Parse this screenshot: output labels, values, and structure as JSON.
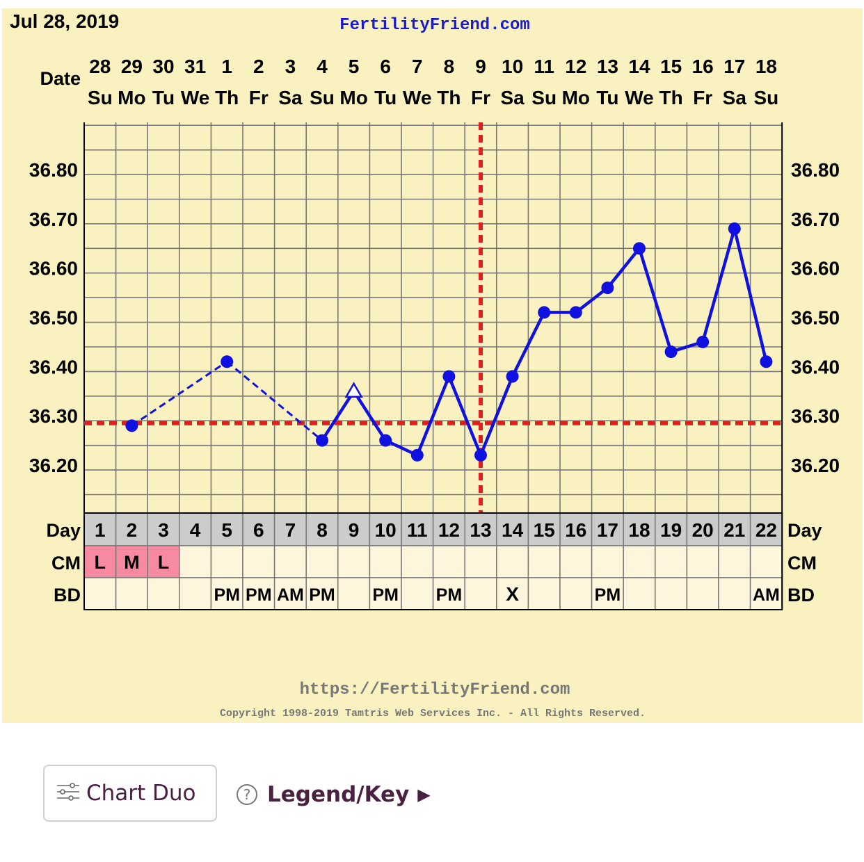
{
  "header": {
    "date": "Jul 28, 2019",
    "site": "FertilityFriend.com"
  },
  "labels": {
    "date": "Date",
    "day": "Day",
    "cm": "CM",
    "bd": "BD"
  },
  "footer": {
    "url": "https://FertilityFriend.com",
    "copyright": "Copyright 1998-2019 Tamtris Web Services Inc. - All Rights Reserved."
  },
  "chart_data": {
    "type": "line",
    "dates": [
      "28",
      "29",
      "30",
      "31",
      "1",
      "2",
      "3",
      "4",
      "5",
      "6",
      "7",
      "8",
      "9",
      "10",
      "11",
      "12",
      "13",
      "14",
      "15",
      "16",
      "17",
      "18"
    ],
    "weekdays": [
      "Su",
      "Mo",
      "Tu",
      "We",
      "Th",
      "Fr",
      "Sa",
      "Su",
      "Mo",
      "Tu",
      "We",
      "Th",
      "Fr",
      "Sa",
      "Su",
      "Mo",
      "Tu",
      "We",
      "Th",
      "Fr",
      "Sa",
      "Su"
    ],
    "cycle_days": [
      "1",
      "2",
      "3",
      "4",
      "5",
      "6",
      "7",
      "8",
      "9",
      "10",
      "11",
      "12",
      "13",
      "14",
      "15",
      "16",
      "17",
      "18",
      "19",
      "20",
      "21",
      "22"
    ],
    "temperatures": [
      null,
      36.28,
      null,
      null,
      36.41,
      null,
      null,
      36.25,
      36.35,
      36.25,
      36.22,
      36.38,
      36.22,
      36.38,
      36.51,
      36.51,
      36.56,
      36.64,
      36.43,
      36.45,
      36.68,
      36.41
    ],
    "marker_shapes": {
      "9": "open-triangle"
    },
    "dashed_segments": [
      [
        2,
        5
      ],
      [
        5,
        8
      ]
    ],
    "y_ticks": [
      "36.20",
      "36.30",
      "36.40",
      "36.50",
      "36.60",
      "36.70",
      "36.80"
    ],
    "ylim": [
      36.11,
      36.9
    ],
    "coverline": 36.285,
    "ovulation_day": 13,
    "cm": [
      "L",
      "M",
      "L",
      "",
      "",
      "",
      "",
      "",
      "",
      "",
      "",
      "",
      "",
      "",
      "",
      "",
      "",
      "",
      "",
      "",
      "",
      ""
    ],
    "bd": [
      "",
      "",
      "",
      "",
      "PM",
      "PM",
      "AM",
      "PM",
      "",
      "PM",
      "",
      "PM",
      "",
      "X",
      "",
      "",
      "PM",
      "",
      "",
      "",
      "",
      "AM"
    ],
    "colors": {
      "background": "#f9f2c0",
      "line": "#1010e0",
      "coverline": "#e02020",
      "day_row": "#cccccc",
      "cm_highlight": "#f58aa0",
      "cm_cell": "#fdf5dc",
      "site": "#1a1ad0"
    }
  },
  "controls": {
    "chart_duo": "Chart Duo",
    "legend": "Legend/Key",
    "legend_arrow": "▶",
    "help_icon": "?"
  }
}
